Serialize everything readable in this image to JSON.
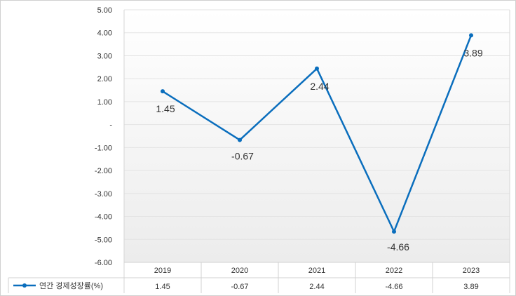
{
  "chart_data": {
    "type": "line",
    "categories": [
      "2019",
      "2020",
      "2021",
      "2022",
      "2023"
    ],
    "series": [
      {
        "name": "연간 경제성장률(%)",
        "values": [
          1.45,
          -0.67,
          2.44,
          -4.66,
          3.89
        ],
        "color": "#0a6ebd"
      }
    ],
    "data_labels": [
      "1.45",
      "-0.67",
      "2.44",
      "-4.66",
      "3.89"
    ],
    "ylim": [
      -6,
      5
    ],
    "y_ticks": [
      {
        "value": 5,
        "label": "5.00"
      },
      {
        "value": 4,
        "label": "4.00"
      },
      {
        "value": 3,
        "label": "3.00"
      },
      {
        "value": 2,
        "label": "2.00"
      },
      {
        "value": 1,
        "label": "1.00"
      },
      {
        "value": 0,
        "label": "-"
      },
      {
        "value": -1,
        "label": "-1.00"
      },
      {
        "value": -2,
        "label": "-2.00"
      },
      {
        "value": -3,
        "label": "-3.00"
      },
      {
        "value": -4,
        "label": "-4.00"
      },
      {
        "value": -5,
        "label": "-5.00"
      },
      {
        "value": -6,
        "label": "-6.00"
      }
    ],
    "grid": true,
    "data_table": {
      "row_label": "연간 경제성장률(%)",
      "values": [
        "1.45",
        "-0.67",
        "2.44",
        "-4.66",
        "3.89"
      ]
    },
    "colors": {
      "line": "#0a6ebd",
      "grid": "#e3e3e3",
      "text": "#333333"
    }
  }
}
